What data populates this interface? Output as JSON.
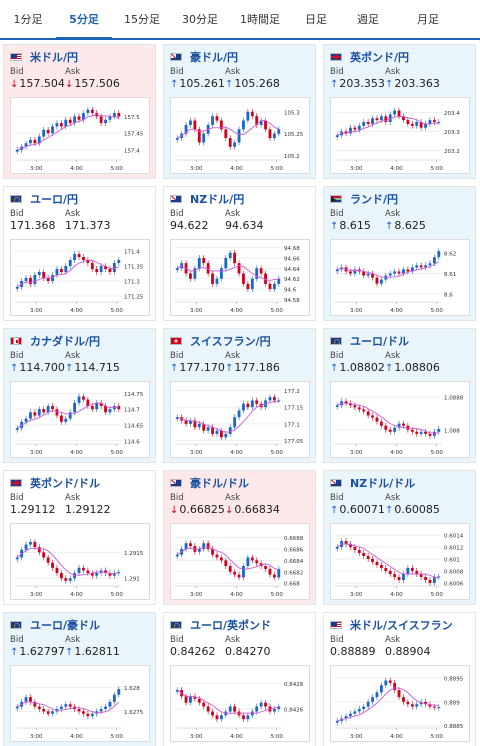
{
  "tabs": [
    {
      "label": "1分足",
      "active": false
    },
    {
      "label": "5分足",
      "active": true
    },
    {
      "label": "15分足",
      "active": false
    },
    {
      "label": "30分足",
      "active": false
    },
    {
      "label": "1時間足",
      "active": false
    },
    {
      "label": "日足",
      "active": false
    },
    {
      "label": "週足",
      "active": false
    },
    {
      "label": "月足",
      "active": false
    }
  ],
  "labels": {
    "bid": "Bid",
    "ask": "Ask"
  },
  "colors": {
    "up_arrow": "#1a66cc",
    "down_arrow": "#d0021b",
    "candle_up": "#1a66cc",
    "candle_down": "#d0021b",
    "ma": "#d05ad5",
    "selected_tab": "#1e63b4"
  },
  "cards": [
    {
      "pair": "米ドル/円",
      "flags": [
        "us",
        "jp"
      ],
      "direction": "down",
      "bid": "157.504",
      "ask": "157.506",
      "chart_data": {
        "type": "candlestick",
        "x_ticks": [
          "3:00",
          "4:00",
          "5:00"
        ],
        "y_ticks": [
          "157.5",
          "157.45",
          "157.4"
        ],
        "ylim": [
          157.37,
          157.54
        ],
        "closes": [
          157.4,
          157.41,
          157.42,
          157.43,
          157.42,
          157.44,
          157.46,
          157.45,
          157.47,
          157.48,
          157.47,
          157.49,
          157.48,
          157.5,
          157.49,
          157.51,
          157.52,
          157.51,
          157.5,
          157.48,
          157.49,
          157.5,
          157.51,
          157.5
        ]
      }
    },
    {
      "pair": "豪ドル/円",
      "flags": [
        "au",
        "jp"
      ],
      "direction": "up",
      "bid": "105.261",
      "ask": "105.268",
      "chart_data": {
        "type": "candlestick",
        "x_ticks": [
          "3:00",
          "4:00",
          "5:00"
        ],
        "y_ticks": [
          "105.3",
          "105.25",
          "105.2"
        ],
        "ylim": [
          105.19,
          105.32
        ],
        "closes": [
          105.24,
          105.25,
          105.27,
          105.28,
          105.26,
          105.23,
          105.25,
          105.27,
          105.29,
          105.28,
          105.26,
          105.24,
          105.22,
          105.23,
          105.26,
          105.28,
          105.3,
          105.29,
          105.27,
          105.28,
          105.26,
          105.24,
          105.25,
          105.26
        ]
      }
    },
    {
      "pair": "英ポンド/円",
      "flags": [
        "gb",
        "jp"
      ],
      "direction": "up",
      "bid": "203.353",
      "ask": "203.363",
      "chart_data": {
        "type": "candlestick",
        "x_ticks": [
          "3:00",
          "4:00",
          "5:00"
        ],
        "y_ticks": [
          "203.4",
          "203.3",
          "203.2"
        ],
        "ylim": [
          203.15,
          203.45
        ],
        "closes": [
          203.28,
          203.3,
          203.29,
          203.32,
          203.31,
          203.33,
          203.35,
          203.34,
          203.37,
          203.36,
          203.38,
          203.35,
          203.39,
          203.41,
          203.38,
          203.36,
          203.34,
          203.33,
          203.35,
          203.32,
          203.34,
          203.36,
          203.35,
          203.35
        ]
      }
    },
    {
      "pair": "ユーロ/円",
      "flags": [
        "eu",
        "jp"
      ],
      "direction": "flat",
      "bid": "171.368",
      "ask": "171.373",
      "chart_data": {
        "type": "candlestick",
        "x_ticks": [
          "3:00",
          "4:00",
          "5:00"
        ],
        "y_ticks": [
          "171.4",
          "171.35",
          "171.3",
          "171.25"
        ],
        "ylim": [
          171.23,
          171.42
        ],
        "closes": [
          171.28,
          171.3,
          171.31,
          171.29,
          171.32,
          171.33,
          171.31,
          171.3,
          171.32,
          171.34,
          171.33,
          171.35,
          171.37,
          171.39,
          171.38,
          171.37,
          171.36,
          171.34,
          171.33,
          171.35,
          171.34,
          171.33,
          171.36,
          171.37
        ]
      }
    },
    {
      "pair": "NZドル/円",
      "flags": [
        "nz",
        "jp"
      ],
      "direction": "flat",
      "bid": "94.622",
      "ask": "94.634",
      "chart_data": {
        "type": "candlestick",
        "x_ticks": [
          "3:00",
          "4:00",
          "5:00"
        ],
        "y_ticks": [
          "94.68",
          "94.66",
          "94.64",
          "94.62",
          "94.6",
          "94.58"
        ],
        "ylim": [
          94.575,
          94.685
        ],
        "closes": [
          94.64,
          94.65,
          94.63,
          94.62,
          94.64,
          94.66,
          94.65,
          94.63,
          94.61,
          94.62,
          94.64,
          94.66,
          94.67,
          94.65,
          94.63,
          94.61,
          94.6,
          94.62,
          94.64,
          94.63,
          94.61,
          94.6,
          94.61,
          94.62
        ]
      }
    },
    {
      "pair": "ランド/円",
      "flags": [
        "za",
        "jp"
      ],
      "direction": "up",
      "bid": "8.615",
      "ask": "8.625",
      "chart_data": {
        "type": "candlestick",
        "x_ticks": [
          "3:00",
          "4:00",
          "5:00"
        ],
        "y_ticks": [
          "8.62",
          "8.61",
          "8.6"
        ],
        "ylim": [
          8.596,
          8.624
        ],
        "closes": [
          8.612,
          8.613,
          8.611,
          8.61,
          8.612,
          8.611,
          8.609,
          8.61,
          8.608,
          8.605,
          8.607,
          8.609,
          8.61,
          8.611,
          8.61,
          8.612,
          8.611,
          8.613,
          8.614,
          8.613,
          8.614,
          8.615,
          8.618,
          8.621
        ]
      }
    },
    {
      "pair": "カナダドル/円",
      "flags": [
        "ca",
        "jp"
      ],
      "direction": "up",
      "bid": "114.700",
      "ask": "114.715",
      "chart_data": {
        "type": "candlestick",
        "x_ticks": [
          "3:00",
          "4:00",
          "5:00"
        ],
        "y_ticks": [
          "114.75",
          "114.7",
          "114.65",
          "114.6"
        ],
        "ylim": [
          114.59,
          114.77
        ],
        "closes": [
          114.64,
          114.66,
          114.67,
          114.69,
          114.68,
          114.7,
          114.69,
          114.71,
          114.7,
          114.68,
          114.66,
          114.67,
          114.69,
          114.72,
          114.74,
          114.73,
          114.71,
          114.7,
          114.72,
          114.71,
          114.69,
          114.7,
          114.71,
          114.7
        ]
      }
    },
    {
      "pair": "スイスフラン/円",
      "flags": [
        "ch",
        "jp"
      ],
      "direction": "up",
      "bid": "177.170",
      "ask": "177.186",
      "chart_data": {
        "type": "candlestick",
        "x_ticks": [
          "3:00",
          "4:00",
          "5:00"
        ],
        "y_ticks": [
          "177.2",
          "177.15",
          "177.1",
          "177.05"
        ],
        "ylim": [
          177.04,
          177.21
        ],
        "closes": [
          177.12,
          177.11,
          177.1,
          177.11,
          177.09,
          177.1,
          177.08,
          177.09,
          177.07,
          177.08,
          177.06,
          177.07,
          177.09,
          177.12,
          177.14,
          177.16,
          177.15,
          177.17,
          177.16,
          177.15,
          177.17,
          177.18,
          177.17,
          177.17
        ]
      }
    },
    {
      "pair": "ユーロ/ドル",
      "flags": [
        "eu",
        "us"
      ],
      "direction": "up",
      "bid": "1.08802",
      "ask": "1.08806",
      "chart_data": {
        "type": "candlestick",
        "x_ticks": [
          "3:00",
          "4:00",
          "5:00"
        ],
        "y_ticks": [
          "1.0888",
          "1.088"
        ],
        "ylim": [
          1.08765,
          1.08905
        ],
        "closes": [
          1.0886,
          1.0887,
          1.08865,
          1.0886,
          1.08855,
          1.0885,
          1.08845,
          1.08835,
          1.0883,
          1.0882,
          1.0881,
          1.088,
          1.08795,
          1.08805,
          1.08815,
          1.0881,
          1.088,
          1.08795,
          1.0879,
          1.08795,
          1.0879,
          1.08785,
          1.08795,
          1.08802
        ]
      }
    },
    {
      "pair": "英ポンド/ドル",
      "flags": [
        "gb",
        "us"
      ],
      "direction": "flat",
      "bid": "1.29112",
      "ask": "1.29122",
      "chart_data": {
        "type": "candlestick",
        "x_ticks": [
          "3:00",
          "4:00",
          "5:00"
        ],
        "y_ticks": [
          "1.2915",
          "1.291"
        ],
        "ylim": [
          1.29085,
          1.29195
        ],
        "closes": [
          1.2914,
          1.29155,
          1.29165,
          1.2917,
          1.2916,
          1.2915,
          1.2914,
          1.2913,
          1.2912,
          1.2911,
          1.291,
          1.29095,
          1.291,
          1.2911,
          1.2912,
          1.29115,
          1.2911,
          1.29105,
          1.2911,
          1.29115,
          1.2911,
          1.29105,
          1.2911,
          1.29112
        ]
      }
    },
    {
      "pair": "豪ドル/ドル",
      "flags": [
        "au",
        "us"
      ],
      "direction": "down",
      "bid": "0.66825",
      "ask": "0.66834",
      "chart_data": {
        "type": "candlestick",
        "x_ticks": [
          "3:00",
          "4:00",
          "5:00"
        ],
        "y_ticks": [
          "0.6688",
          "0.6686",
          "0.6684",
          "0.6682",
          "0.668"
        ],
        "ylim": [
          0.66795,
          0.66895
        ],
        "closes": [
          0.6685,
          0.6686,
          0.6687,
          0.66865,
          0.66855,
          0.6686,
          0.6687,
          0.6686,
          0.6685,
          0.66845,
          0.6684,
          0.6683,
          0.6682,
          0.66815,
          0.6681,
          0.6683,
          0.66845,
          0.6684,
          0.66835,
          0.6683,
          0.66825,
          0.66815,
          0.6681,
          0.66825
        ]
      }
    },
    {
      "pair": "NZドル/ドル",
      "flags": [
        "nz",
        "us"
      ],
      "direction": "up",
      "bid": "0.60071",
      "ask": "0.60085",
      "chart_data": {
        "type": "candlestick",
        "x_ticks": [
          "3:00",
          "4:00",
          "5:00"
        ],
        "y_ticks": [
          "0.6014",
          "0.6012",
          "0.601",
          "0.6008",
          "0.6006"
        ],
        "ylim": [
          0.60055,
          0.6015
        ],
        "closes": [
          0.6012,
          0.6013,
          0.60125,
          0.6012,
          0.60115,
          0.6011,
          0.60105,
          0.601,
          0.60095,
          0.6009,
          0.60085,
          0.6008,
          0.60075,
          0.6007,
          0.60065,
          0.60075,
          0.60085,
          0.6008,
          0.60075,
          0.6007,
          0.60065,
          0.6006,
          0.6007,
          0.60071
        ]
      }
    },
    {
      "pair": "ユーロ/豪ドル",
      "flags": [
        "eu",
        "au"
      ],
      "direction": "up",
      "bid": "1.62797",
      "ask": "1.62811",
      "chart_data": {
        "type": "candlestick",
        "x_ticks": [
          "3:00",
          "4:00",
          "5:00"
        ],
        "y_ticks": [
          "1.628",
          "1.6275"
        ],
        "ylim": [
          1.62715,
          1.62835
        ],
        "closes": [
          1.6276,
          1.6277,
          1.6278,
          1.6277,
          1.6276,
          1.62755,
          1.6275,
          1.62745,
          1.6275,
          1.62755,
          1.6276,
          1.62765,
          1.6276,
          1.62755,
          1.6275,
          1.62745,
          1.6274,
          1.62745,
          1.6275,
          1.62755,
          1.6276,
          1.6277,
          1.62785,
          1.62797
        ]
      }
    },
    {
      "pair": "ユーロ/英ポンド",
      "flags": [
        "eu",
        "gb"
      ],
      "direction": "flat",
      "bid": "0.84262",
      "ask": "0.84270",
      "chart_data": {
        "type": "candlestick",
        "x_ticks": [
          "3:00",
          "4:00",
          "5:00"
        ],
        "y_ticks": [
          "0.8428",
          "0.8426"
        ],
        "ylim": [
          0.84245,
          0.8429
        ],
        "closes": [
          0.84275,
          0.8427,
          0.84265,
          0.8427,
          0.84268,
          0.84265,
          0.84262,
          0.84258,
          0.84255,
          0.84252,
          0.84255,
          0.84258,
          0.84262,
          0.84258,
          0.84255,
          0.84252,
          0.84255,
          0.84258,
          0.84262,
          0.84265,
          0.84262,
          0.84258,
          0.8426,
          0.84262
        ]
      }
    },
    {
      "pair": "米ドル/スイスフラン",
      "flags": [
        "us",
        "ch"
      ],
      "direction": "flat",
      "bid": "0.88889",
      "ask": "0.88904",
      "chart_data": {
        "type": "candlestick",
        "x_ticks": [
          "3:00",
          "4:00",
          "5:00"
        ],
        "y_ticks": [
          "0.8895",
          "0.889",
          "0.8885"
        ],
        "ylim": [
          0.88845,
          0.88965
        ],
        "closes": [
          0.8886,
          0.88865,
          0.8887,
          0.88875,
          0.8888,
          0.88885,
          0.8889,
          0.889,
          0.8891,
          0.8892,
          0.88935,
          0.88945,
          0.8894,
          0.88925,
          0.8891,
          0.889,
          0.88895,
          0.8889,
          0.88895,
          0.889,
          0.88895,
          0.8889,
          0.88888,
          0.88889
        ]
      }
    }
  ]
}
